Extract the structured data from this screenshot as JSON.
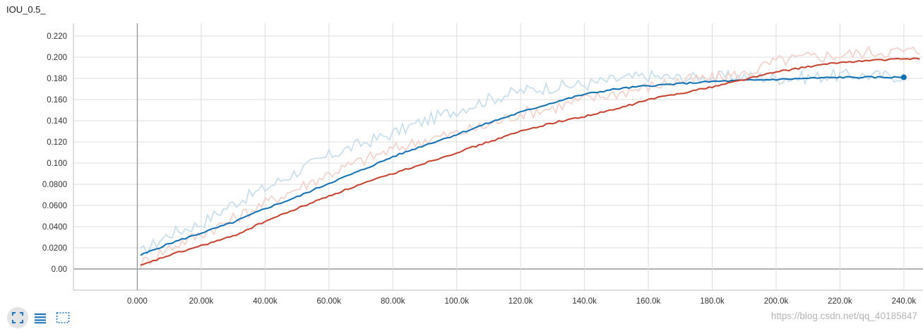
{
  "title": "IOU_0.5_",
  "watermark": "https://blog.csdn.net/qq_40185847",
  "toolbar": {
    "buttons": [
      {
        "name": "fit-domain-icon",
        "active": true
      },
      {
        "name": "toggle-log-scale-icon",
        "active": false
      },
      {
        "name": "selection-zoom-icon",
        "active": false
      }
    ]
  },
  "colors": {
    "blue_smoothed": "#0f6fb4",
    "blue_raw": "#c3ddef",
    "red_smoothed": "#c8402c",
    "red_raw": "#f6cfc7",
    "grid": "#dddddd",
    "zero_axis": "#999999"
  },
  "chart_data": {
    "type": "line",
    "title": "IOU_0.5_",
    "xlim": [
      -20000,
      246000
    ],
    "ylim": [
      -0.02,
      0.232
    ],
    "x_ticks": [
      0,
      20000,
      40000,
      60000,
      80000,
      100000,
      120000,
      140000,
      160000,
      180000,
      200000,
      220000,
      240000
    ],
    "x_tick_labels": [
      "0.000",
      "20.00k",
      "40.00k",
      "60.00k",
      "80.00k",
      "100.0k",
      "120.0k",
      "140.0k",
      "160.0k",
      "180.0k",
      "200.0k",
      "220.0k",
      "240.0k"
    ],
    "y_ticks": [
      0,
      0.02,
      0.04,
      0.06,
      0.08,
      0.1,
      0.12,
      0.14,
      0.16,
      0.18,
      0.2,
      0.22
    ],
    "y_tick_labels": [
      "0.00",
      "0.0200",
      "0.0400",
      "0.0600",
      "0.0800",
      "0.100",
      "0.120",
      "0.140",
      "0.160",
      "0.180",
      "0.200",
      "0.220"
    ],
    "grid": true,
    "series": [
      {
        "key": "blue",
        "x": [
          1000,
          10000,
          20000,
          30000,
          40000,
          50000,
          60000,
          70000,
          80000,
          90000,
          100000,
          110000,
          120000,
          130000,
          140000,
          150000,
          160000,
          170000,
          180000,
          190000,
          200000,
          210000,
          220000,
          240000
        ],
        "smoothed": [
          0.013,
          0.024,
          0.034,
          0.044,
          0.057,
          0.068,
          0.081,
          0.093,
          0.106,
          0.117,
          0.127,
          0.138,
          0.148,
          0.157,
          0.165,
          0.17,
          0.173,
          0.175,
          0.177,
          0.178,
          0.179,
          0.18,
          0.181,
          0.181
        ],
        "raw": [
          0.015,
          0.033,
          0.043,
          0.062,
          0.076,
          0.092,
          0.107,
          0.118,
          0.128,
          0.14,
          0.15,
          0.16,
          0.168,
          0.172,
          0.174,
          0.179,
          0.182,
          0.18,
          0.181,
          0.182,
          0.18,
          0.181,
          0.183,
          0.182
        ]
      },
      {
        "key": "red",
        "x": [
          1000,
          10000,
          20000,
          30000,
          40000,
          50000,
          60000,
          70000,
          80000,
          90000,
          100000,
          110000,
          120000,
          130000,
          140000,
          150000,
          160000,
          170000,
          180000,
          190000,
          200000,
          210000,
          220000,
          230000,
          245000
        ],
        "smoothed": [
          0.003,
          0.013,
          0.022,
          0.031,
          0.045,
          0.057,
          0.069,
          0.08,
          0.09,
          0.1,
          0.11,
          0.12,
          0.13,
          0.138,
          0.144,
          0.151,
          0.16,
          0.166,
          0.172,
          0.179,
          0.186,
          0.191,
          0.195,
          0.197,
          0.199
        ],
        "raw": [
          0.005,
          0.02,
          0.033,
          0.047,
          0.062,
          0.076,
          0.09,
          0.102,
          0.113,
          0.122,
          0.128,
          0.136,
          0.147,
          0.152,
          0.16,
          0.166,
          0.172,
          0.178,
          0.18,
          0.184,
          0.196,
          0.2,
          0.202,
          0.205,
          0.206
        ]
      }
    ],
    "last_point": {
      "series": "blue",
      "x": 240000,
      "y": 0.181
    }
  }
}
